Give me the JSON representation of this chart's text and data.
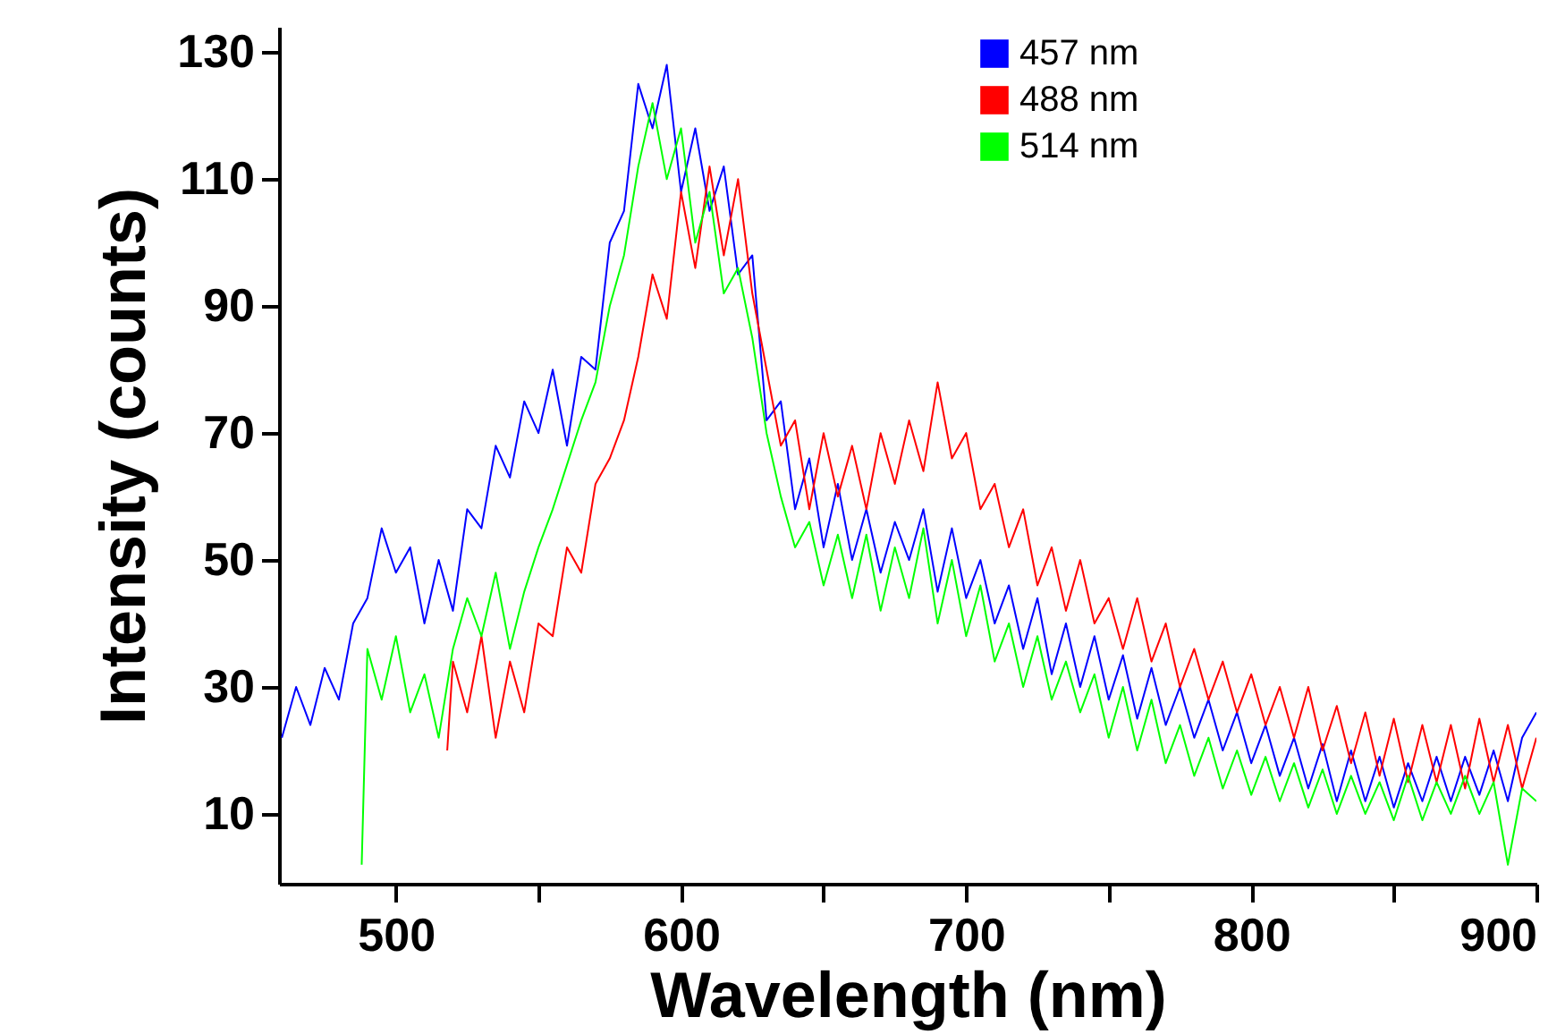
{
  "chart_data": {
    "type": "line",
    "xlabel": "Wavelength (nm)",
    "ylabel": "Intensity (counts)",
    "xlim": [
      459,
      900
    ],
    "ylim": [
      -1,
      134
    ],
    "xticks": [
      500,
      {
        "value": 550,
        "label": null
      },
      600,
      {
        "value": 650,
        "label": null
      },
      700,
      {
        "value": 750,
        "label": null
      },
      800,
      {
        "value": 850,
        "label": null
      },
      900
    ],
    "yticks": [
      10,
      30,
      50,
      70,
      90,
      110,
      130
    ],
    "grid": false,
    "legend": "top right",
    "marker": "none",
    "line_style": "solid",
    "series": [
      {
        "name": "457 nm",
        "color": "#0000ff",
        "x": [
          460,
          465,
          470,
          475,
          480,
          485,
          490,
          495,
          500,
          505,
          510,
          515,
          520,
          525,
          530,
          535,
          540,
          545,
          550,
          555,
          560,
          565,
          570,
          575,
          580,
          585,
          590,
          595,
          600,
          605,
          610,
          615,
          620,
          625,
          630,
          635,
          640,
          645,
          650,
          655,
          660,
          665,
          670,
          675,
          680,
          685,
          690,
          695,
          700,
          705,
          710,
          715,
          720,
          725,
          730,
          735,
          740,
          745,
          750,
          755,
          760,
          765,
          770,
          775,
          780,
          785,
          790,
          795,
          800,
          805,
          810,
          815,
          820,
          825,
          830,
          835,
          840,
          845,
          850,
          855,
          860,
          865,
          870,
          875,
          880,
          885,
          890,
          895,
          900
        ],
        "values": [
          22,
          30,
          24,
          33,
          28,
          40,
          44,
          55,
          48,
          52,
          40,
          50,
          42,
          58,
          55,
          68,
          63,
          75,
          70,
          80,
          68,
          82,
          80,
          100,
          105,
          125,
          118,
          128,
          108,
          118,
          105,
          112,
          95,
          98,
          72,
          75,
          58,
          66,
          52,
          62,
          50,
          58,
          48,
          56,
          50,
          58,
          45,
          55,
          44,
          50,
          40,
          46,
          36,
          44,
          32,
          40,
          30,
          38,
          28,
          35,
          25,
          33,
          24,
          30,
          22,
          28,
          20,
          26,
          18,
          24,
          16,
          22,
          14,
          21,
          12,
          20,
          12,
          19,
          11,
          18,
          12,
          19,
          12,
          19,
          13,
          20,
          12,
          22,
          26
        ]
      },
      {
        "name": "488 nm",
        "color": "#ff0000",
        "x": [
          518,
          520,
          525,
          530,
          535,
          540,
          545,
          550,
          555,
          560,
          565,
          570,
          575,
          580,
          585,
          590,
          595,
          600,
          605,
          610,
          615,
          620,
          625,
          630,
          635,
          640,
          645,
          650,
          655,
          660,
          665,
          670,
          675,
          680,
          685,
          690,
          695,
          700,
          705,
          710,
          715,
          720,
          725,
          730,
          735,
          740,
          745,
          750,
          755,
          760,
          765,
          770,
          775,
          780,
          785,
          790,
          795,
          800,
          805,
          810,
          815,
          820,
          825,
          830,
          835,
          840,
          845,
          850,
          855,
          860,
          865,
          870,
          875,
          880,
          885,
          890,
          895,
          900
        ],
        "values": [
          20,
          34,
          26,
          38,
          22,
          34,
          26,
          40,
          38,
          52,
          48,
          62,
          66,
          72,
          82,
          95,
          88,
          108,
          96,
          112,
          98,
          110,
          92,
          80,
          68,
          72,
          58,
          70,
          60,
          68,
          58,
          70,
          62,
          72,
          64,
          78,
          66,
          70,
          58,
          62,
          52,
          58,
          46,
          52,
          42,
          50,
          40,
          44,
          36,
          44,
          34,
          40,
          30,
          36,
          28,
          34,
          26,
          32,
          24,
          30,
          22,
          30,
          20,
          27,
          18,
          26,
          16,
          25,
          15,
          24,
          15,
          24,
          14,
          25,
          15,
          24,
          14,
          22
        ]
      },
      {
        "name": "514 nm",
        "color": "#00ff00",
        "x": [
          488,
          490,
          495,
          500,
          505,
          510,
          515,
          520,
          525,
          530,
          535,
          540,
          545,
          550,
          555,
          560,
          565,
          570,
          575,
          580,
          585,
          590,
          595,
          600,
          605,
          610,
          615,
          620,
          625,
          630,
          635,
          640,
          645,
          650,
          655,
          660,
          665,
          670,
          675,
          680,
          685,
          690,
          695,
          700,
          705,
          710,
          715,
          720,
          725,
          730,
          735,
          740,
          745,
          750,
          755,
          760,
          765,
          770,
          775,
          780,
          785,
          790,
          795,
          800,
          805,
          810,
          815,
          820,
          825,
          830,
          835,
          840,
          845,
          850,
          855,
          860,
          865,
          870,
          875,
          880,
          885,
          890,
          895,
          900
        ],
        "values": [
          2,
          36,
          28,
          38,
          26,
          32,
          22,
          36,
          44,
          38,
          48,
          36,
          45,
          52,
          58,
          65,
          72,
          78,
          90,
          98,
          112,
          122,
          110,
          118,
          100,
          108,
          92,
          96,
          85,
          70,
          60,
          52,
          56,
          46,
          54,
          44,
          54,
          42,
          52,
          44,
          55,
          40,
          50,
          38,
          46,
          34,
          40,
          30,
          38,
          28,
          34,
          26,
          32,
          22,
          30,
          20,
          28,
          18,
          24,
          16,
          22,
          14,
          20,
          13,
          19,
          12,
          18,
          11,
          17,
          10,
          16,
          10,
          15,
          9,
          16,
          9,
          15,
          10,
          16,
          10,
          15,
          2,
          14,
          12
        ]
      }
    ]
  }
}
